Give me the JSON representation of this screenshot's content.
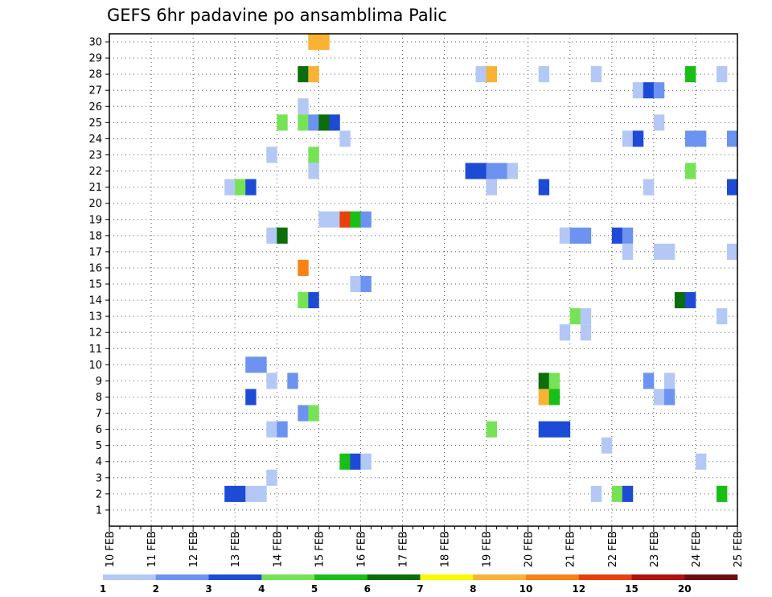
{
  "chart_data": {
    "type": "heatmap",
    "title": "GEFS 6hr padavine po ansamblima Palic",
    "x_categories": [
      "10 FEB",
      "11 FEB",
      "12 FEB",
      "13 FEB",
      "14 FEB",
      "15 FEB",
      "16 FEB",
      "17 FEB",
      "18 FEB",
      "19 FEB",
      "20 FEB",
      "21 FEB",
      "22 FEB",
      "23 FEB",
      "24 FEB",
      "25 FEB"
    ],
    "y_ticks": [
      1,
      2,
      3,
      4,
      5,
      6,
      7,
      8,
      9,
      10,
      11,
      12,
      13,
      14,
      15,
      16,
      17,
      18,
      19,
      20,
      21,
      22,
      23,
      24,
      25,
      26,
      27,
      28,
      29,
      30
    ],
    "x_range": [
      0,
      60
    ],
    "y_range": [
      0,
      30.5
    ],
    "grid": true,
    "color_scale": [
      {
        "label": "1",
        "color": "#b3c8f5"
      },
      {
        "label": "2",
        "color": "#6d93f0"
      },
      {
        "label": "3",
        "color": "#1e4bd6"
      },
      {
        "label": "4",
        "color": "#76e356"
      },
      {
        "label": "5",
        "color": "#17bf17"
      },
      {
        "label": "6",
        "color": "#0a6e0a"
      },
      {
        "label": "7",
        "color": "#fafa00"
      },
      {
        "label": "8",
        "color": "#f9b233"
      },
      {
        "label": "10",
        "color": "#f78316"
      },
      {
        "label": "12",
        "color": "#e8400c"
      },
      {
        "label": "15",
        "color": "#b01010"
      },
      {
        "label": "20",
        "color": "#6a0f0f"
      }
    ],
    "cells": [
      {
        "x": 20,
        "y": 30,
        "v": 8
      },
      {
        "x": 21,
        "y": 30,
        "v": 8
      },
      {
        "x": 19,
        "y": 28,
        "v": 6
      },
      {
        "x": 20,
        "y": 28,
        "v": 8
      },
      {
        "x": 36,
        "y": 28,
        "v": 1
      },
      {
        "x": 37,
        "y": 28,
        "v": 8
      },
      {
        "x": 42,
        "y": 28,
        "v": 1
      },
      {
        "x": 47,
        "y": 28,
        "v": 1
      },
      {
        "x": 56,
        "y": 28,
        "v": 5
      },
      {
        "x": 59,
        "y": 28,
        "v": 1
      },
      {
        "x": 51,
        "y": 27,
        "v": 1
      },
      {
        "x": 52,
        "y": 27,
        "v": 3
      },
      {
        "x": 53,
        "y": 27,
        "v": 2
      },
      {
        "x": 19,
        "y": 26,
        "v": 1
      },
      {
        "x": 17,
        "y": 25,
        "v": 4
      },
      {
        "x": 19,
        "y": 25,
        "v": 4
      },
      {
        "x": 20,
        "y": 25,
        "v": 2
      },
      {
        "x": 21,
        "y": 25,
        "v": 6
      },
      {
        "x": 22,
        "y": 25,
        "v": 3
      },
      {
        "x": 53,
        "y": 25,
        "v": 1
      },
      {
        "x": 23,
        "y": 24,
        "v": 1
      },
      {
        "x": 50,
        "y": 24,
        "v": 1
      },
      {
        "x": 51,
        "y": 24,
        "v": 3
      },
      {
        "x": 56,
        "y": 24,
        "v": 2
      },
      {
        "x": 57,
        "y": 24,
        "v": 2
      },
      {
        "x": 60,
        "y": 24,
        "v": 2
      },
      {
        "x": 16,
        "y": 23,
        "v": 1
      },
      {
        "x": 20,
        "y": 23,
        "v": 4
      },
      {
        "x": 20,
        "y": 22,
        "v": 1
      },
      {
        "x": 35,
        "y": 22,
        "v": 3
      },
      {
        "x": 36,
        "y": 22,
        "v": 3
      },
      {
        "x": 37,
        "y": 22,
        "v": 2
      },
      {
        "x": 38,
        "y": 22,
        "v": 2
      },
      {
        "x": 39,
        "y": 22,
        "v": 1
      },
      {
        "x": 56,
        "y": 22,
        "v": 4
      },
      {
        "x": 12,
        "y": 21,
        "v": 1
      },
      {
        "x": 13,
        "y": 21,
        "v": 4
      },
      {
        "x": 14,
        "y": 21,
        "v": 3
      },
      {
        "x": 37,
        "y": 21,
        "v": 1
      },
      {
        "x": 42,
        "y": 21,
        "v": 3
      },
      {
        "x": 52,
        "y": 21,
        "v": 1
      },
      {
        "x": 60,
        "y": 21,
        "v": 3
      },
      {
        "x": 21,
        "y": 19,
        "v": 1
      },
      {
        "x": 22,
        "y": 19,
        "v": 1
      },
      {
        "x": 23,
        "y": 19,
        "v": 12
      },
      {
        "x": 24,
        "y": 19,
        "v": 5
      },
      {
        "x": 25,
        "y": 19,
        "v": 2
      },
      {
        "x": 16,
        "y": 18,
        "v": 1
      },
      {
        "x": 17,
        "y": 18,
        "v": 6
      },
      {
        "x": 44,
        "y": 18,
        "v": 1
      },
      {
        "x": 45,
        "y": 18,
        "v": 2
      },
      {
        "x": 46,
        "y": 18,
        "v": 2
      },
      {
        "x": 49,
        "y": 18,
        "v": 3
      },
      {
        "x": 50,
        "y": 18,
        "v": 2
      },
      {
        "x": 50,
        "y": 17,
        "v": 1
      },
      {
        "x": 53,
        "y": 17,
        "v": 1
      },
      {
        "x": 54,
        "y": 17,
        "v": 1
      },
      {
        "x": 60,
        "y": 17,
        "v": 1
      },
      {
        "x": 19,
        "y": 16,
        "v": 10
      },
      {
        "x": 24,
        "y": 15,
        "v": 1
      },
      {
        "x": 25,
        "y": 15,
        "v": 2
      },
      {
        "x": 19,
        "y": 14,
        "v": 4
      },
      {
        "x": 20,
        "y": 14,
        "v": 3
      },
      {
        "x": 55,
        "y": 14,
        "v": 6
      },
      {
        "x": 56,
        "y": 14,
        "v": 3
      },
      {
        "x": 45,
        "y": 13,
        "v": 4
      },
      {
        "x": 46,
        "y": 13,
        "v": 1
      },
      {
        "x": 59,
        "y": 13,
        "v": 1
      },
      {
        "x": 44,
        "y": 12,
        "v": 1
      },
      {
        "x": 46,
        "y": 12,
        "v": 1
      },
      {
        "x": 14,
        "y": 10,
        "v": 2
      },
      {
        "x": 15,
        "y": 10,
        "v": 2
      },
      {
        "x": 16,
        "y": 9,
        "v": 1
      },
      {
        "x": 18,
        "y": 9,
        "v": 2
      },
      {
        "x": 42,
        "y": 9,
        "v": 6
      },
      {
        "x": 43,
        "y": 9,
        "v": 4
      },
      {
        "x": 52,
        "y": 9,
        "v": 2
      },
      {
        "x": 54,
        "y": 9,
        "v": 1
      },
      {
        "x": 14,
        "y": 8,
        "v": 3
      },
      {
        "x": 42,
        "y": 8,
        "v": 8
      },
      {
        "x": 43,
        "y": 8,
        "v": 5
      },
      {
        "x": 53,
        "y": 8,
        "v": 1
      },
      {
        "x": 54,
        "y": 8,
        "v": 2
      },
      {
        "x": 19,
        "y": 7,
        "v": 2
      },
      {
        "x": 20,
        "y": 7,
        "v": 4
      },
      {
        "x": 16,
        "y": 6,
        "v": 1
      },
      {
        "x": 17,
        "y": 6,
        "v": 2
      },
      {
        "x": 37,
        "y": 6,
        "v": 4
      },
      {
        "x": 42,
        "y": 6,
        "v": 3
      },
      {
        "x": 43,
        "y": 6,
        "v": 3
      },
      {
        "x": 44,
        "y": 6,
        "v": 3
      },
      {
        "x": 48,
        "y": 5,
        "v": 1
      },
      {
        "x": 23,
        "y": 4,
        "v": 5
      },
      {
        "x": 24,
        "y": 4,
        "v": 3
      },
      {
        "x": 25,
        "y": 4,
        "v": 1
      },
      {
        "x": 57,
        "y": 4,
        "v": 1
      },
      {
        "x": 16,
        "y": 3,
        "v": 1
      },
      {
        "x": 12,
        "y": 2,
        "v": 3
      },
      {
        "x": 13,
        "y": 2,
        "v": 3
      },
      {
        "x": 14,
        "y": 2,
        "v": 1
      },
      {
        "x": 15,
        "y": 2,
        "v": 1
      },
      {
        "x": 47,
        "y": 2,
        "v": 1
      },
      {
        "x": 49,
        "y": 2,
        "v": 4
      },
      {
        "x": 50,
        "y": 2,
        "v": 3
      },
      {
        "x": 59,
        "y": 2,
        "v": 5
      }
    ]
  }
}
